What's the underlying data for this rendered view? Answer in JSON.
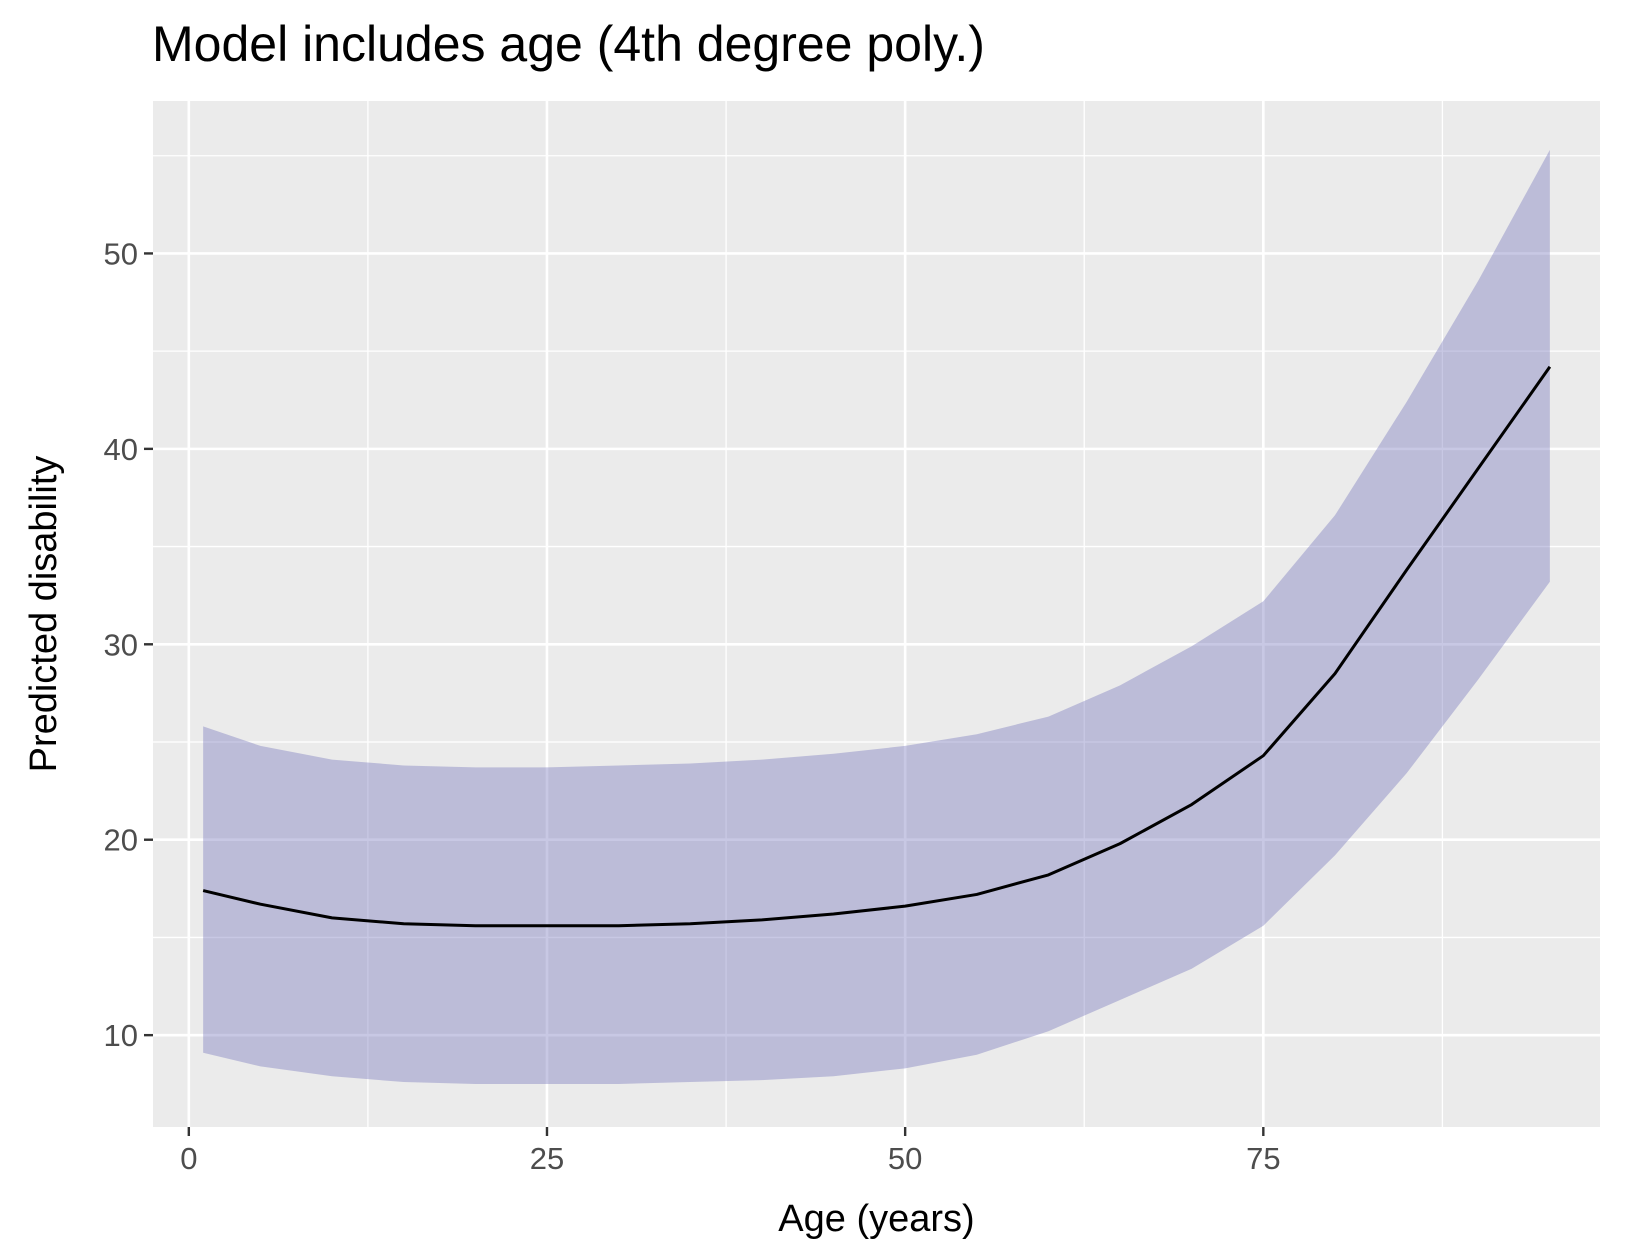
{
  "chart_data": {
    "type": "line",
    "title": "Model includes age (4th degree poly.)",
    "xlabel": "Age (years)",
    "ylabel": "Predicted disability",
    "xlim": [
      -2.5,
      98.5
    ],
    "ylim": [
      5.3,
      57.8
    ],
    "x_ticks": [
      0,
      25,
      50,
      75
    ],
    "x_tick_labels": [
      "0",
      "25",
      "50",
      "75"
    ],
    "y_ticks": [
      10,
      20,
      30,
      40,
      50
    ],
    "y_tick_labels": [
      "10",
      "20",
      "30",
      "40",
      "50"
    ],
    "grid": true,
    "legend": "none",
    "colors": {
      "panel": "#ebebeb",
      "grid": "#ffffff",
      "line": "#000000",
      "ribbon": "#7b7bbf",
      "ribbon_opacity": 0.42
    },
    "series": [
      {
        "x": [
          1,
          5,
          10,
          15,
          20,
          25,
          30,
          35,
          40,
          45,
          50,
          55,
          60,
          65,
          70,
          75,
          80,
          85,
          90,
          95
        ],
        "y": [
          17.4,
          16.7,
          16.0,
          15.7,
          15.6,
          15.6,
          15.6,
          15.7,
          15.9,
          16.2,
          16.6,
          17.2,
          18.2,
          19.8,
          21.8,
          24.3,
          28.5,
          33.8,
          39.0,
          44.2
        ],
        "lower": [
          9.1,
          8.4,
          7.9,
          7.6,
          7.5,
          7.5,
          7.5,
          7.6,
          7.7,
          7.9,
          8.3,
          9.0,
          10.2,
          11.8,
          13.4,
          15.6,
          19.2,
          23.4,
          28.2,
          33.2
        ],
        "upper": [
          25.8,
          24.8,
          24.1,
          23.8,
          23.7,
          23.7,
          23.8,
          23.9,
          24.1,
          24.4,
          24.8,
          25.4,
          26.3,
          27.9,
          29.9,
          32.2,
          36.6,
          42.4,
          48.6,
          55.3
        ]
      }
    ]
  }
}
